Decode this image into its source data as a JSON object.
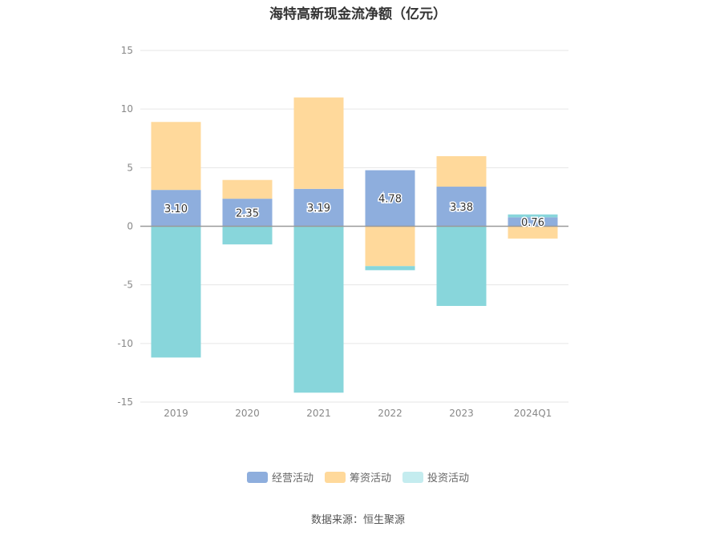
{
  "chart_data": {
    "type": "bar",
    "stacked": true,
    "title": "海特高新现金流净额（亿元）",
    "categories": [
      "2019",
      "2020",
      "2021",
      "2022",
      "2023",
      "2024Q1"
    ],
    "ylim": [
      -15,
      15
    ],
    "yticks": [
      15,
      10,
      5,
      0,
      -5,
      -10,
      -15
    ],
    "grid": true,
    "legend_position": "bottom",
    "series": [
      {
        "name": "经营活动",
        "color": "#8eaedd",
        "values": [
          3.1,
          2.35,
          3.19,
          4.78,
          3.38,
          0.76
        ],
        "labels": [
          "3.10",
          "2.35",
          "3.19",
          "4.78",
          "3.38",
          "0.76"
        ]
      },
      {
        "name": "筹资活动",
        "color": "#ffd99b",
        "values": [
          5.8,
          1.6,
          7.8,
          -3.4,
          2.6,
          -1.05
        ]
      },
      {
        "name": "投资活动",
        "color": "#88d6db",
        "values": [
          -11.2,
          -1.55,
          -14.2,
          -0.35,
          -6.8,
          0.25
        ]
      }
    ]
  },
  "legend": {
    "items": [
      {
        "label": "经营活动",
        "color": "#8eaedd"
      },
      {
        "label": "筹资活动",
        "color": "#ffd99b"
      },
      {
        "label": "投资活动",
        "color": "#c4ecef"
      }
    ]
  },
  "source": "数据来源：恒生聚源"
}
